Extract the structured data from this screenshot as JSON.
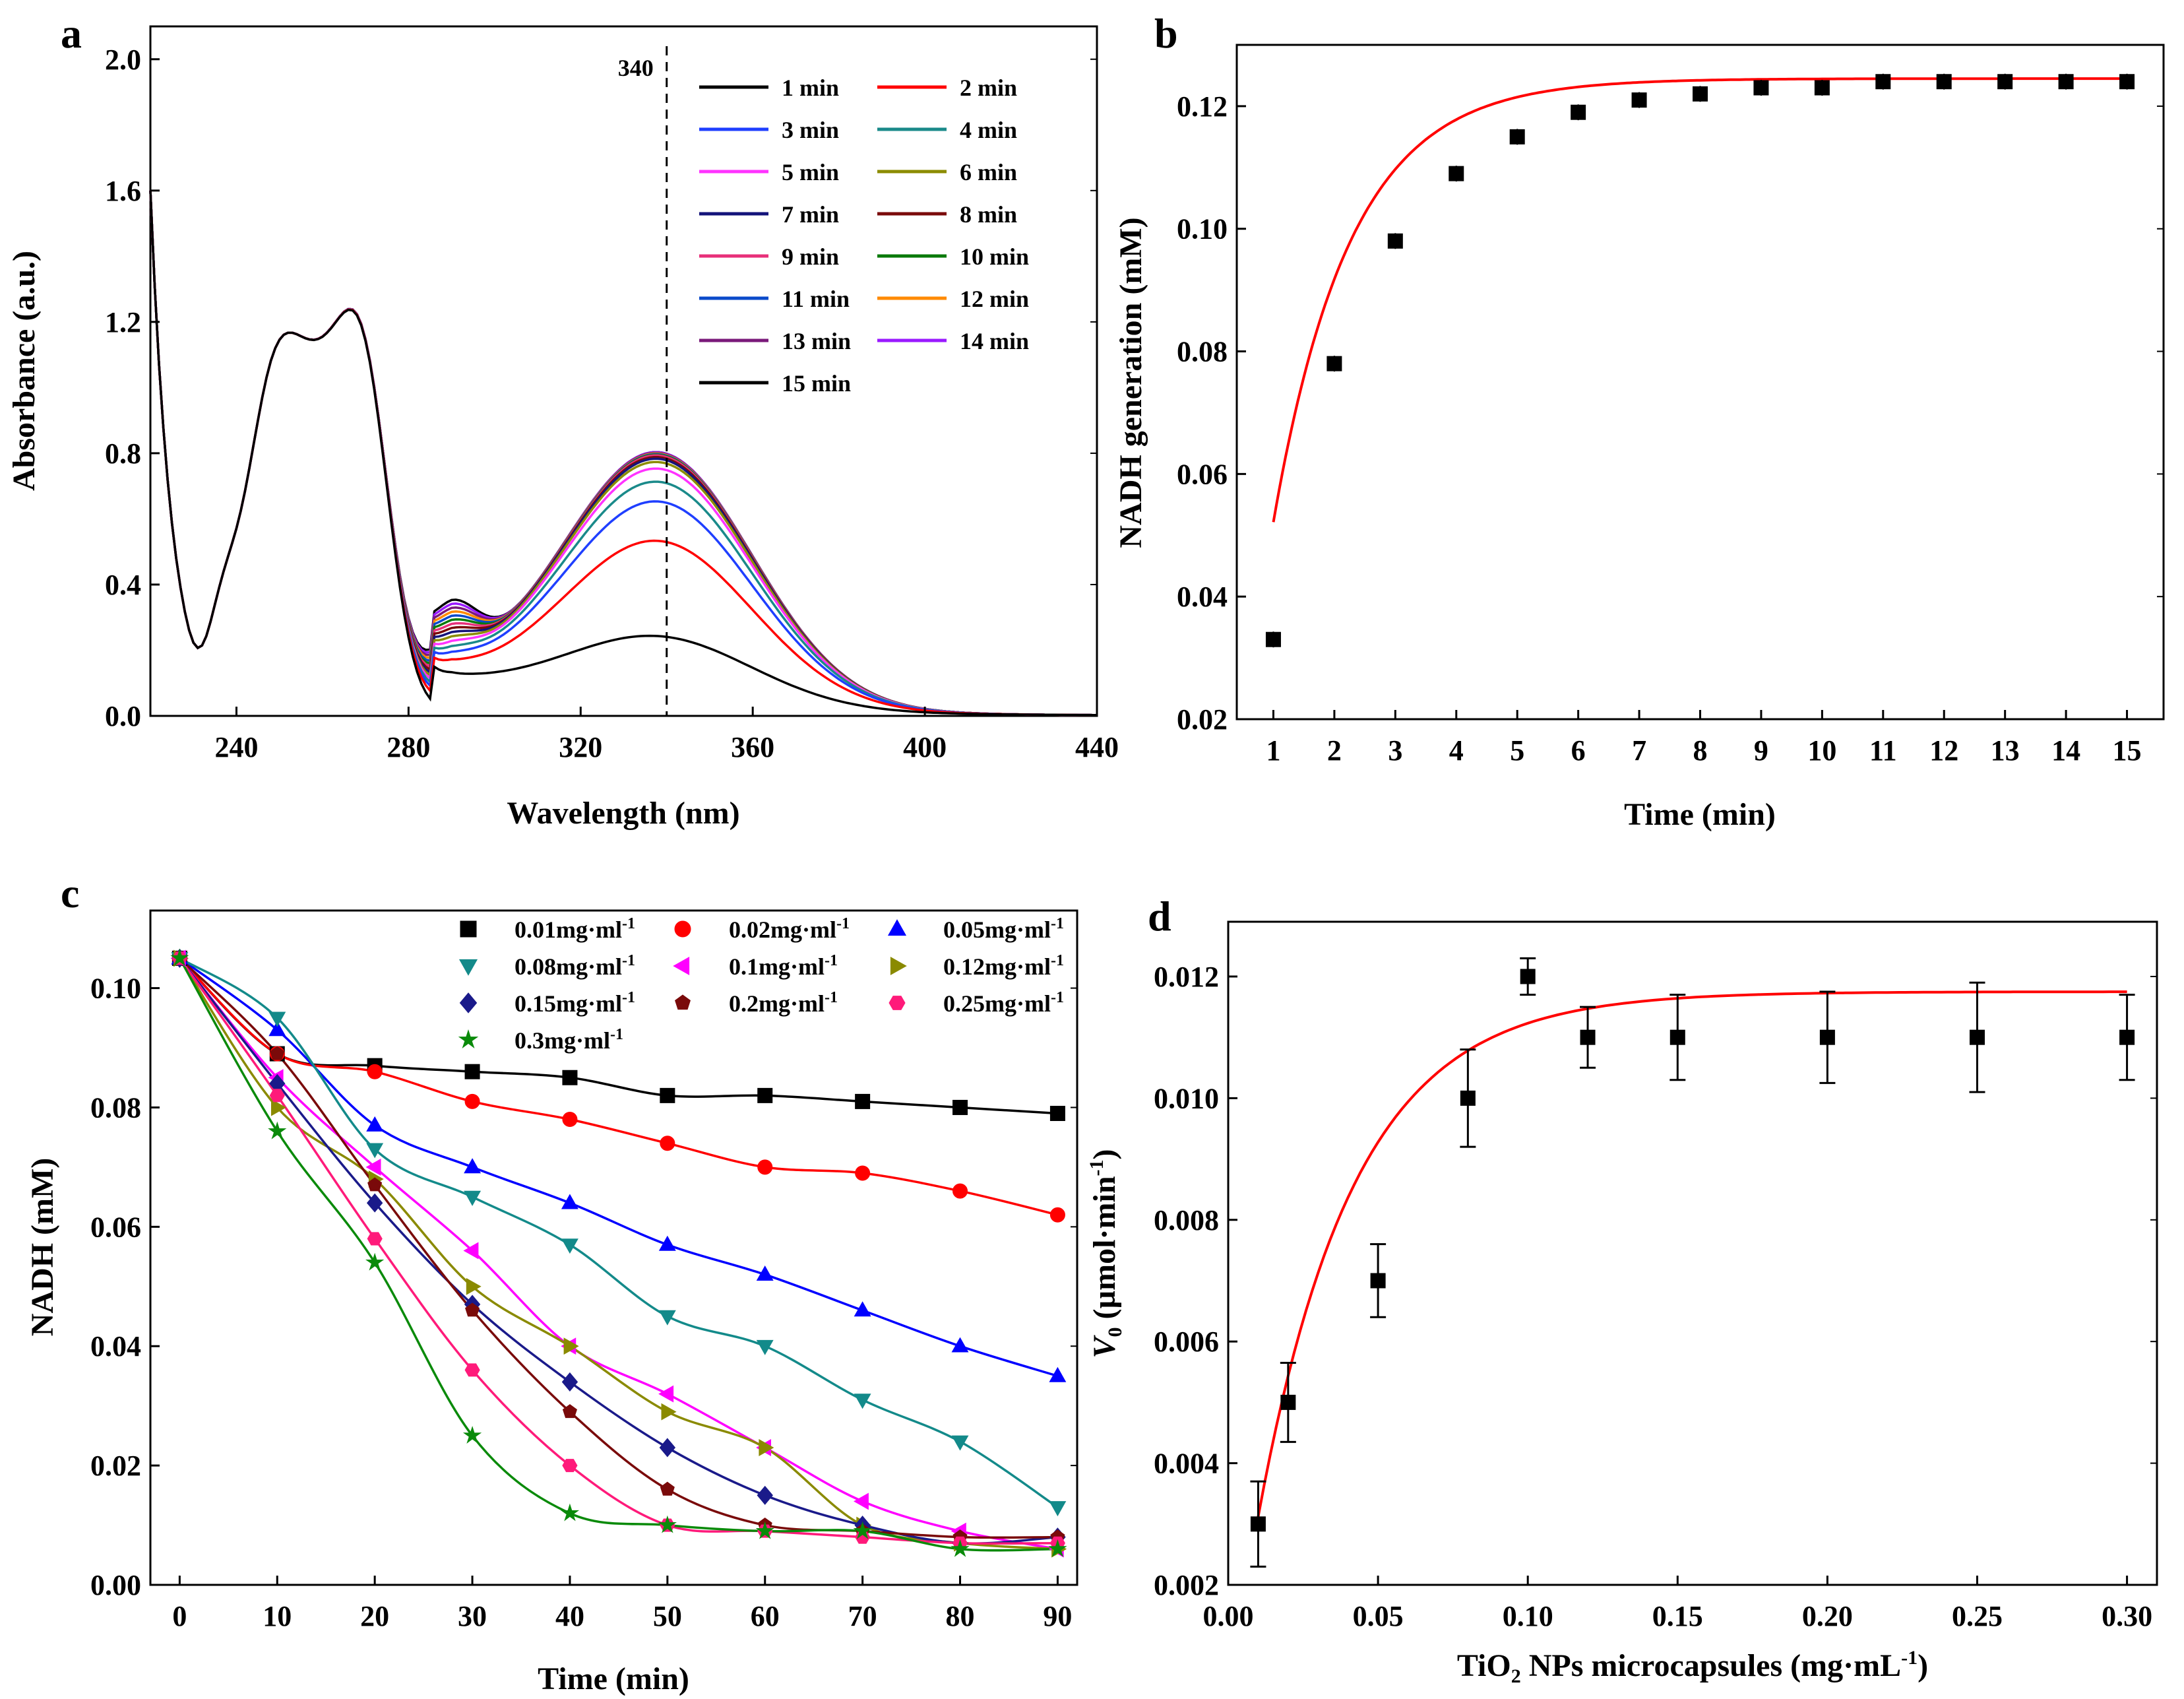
{
  "chart_data": [
    {
      "panel": "a",
      "type": "line",
      "title": "",
      "xlabel": "Wavelength (nm)",
      "ylabel": "Absorbance (a.u.)",
      "xlim": [
        220,
        440
      ],
      "ylim": [
        0.0,
        2.1
      ],
      "xticks": [
        240,
        280,
        320,
        360,
        400,
        440
      ],
      "xtick_labels": [
        "240",
        "280",
        "320",
        "360",
        "400",
        "440"
      ],
      "yticks": [
        0.0,
        0.4,
        0.8,
        1.2,
        1.6,
        2.0
      ],
      "ytick_labels": [
        "0.0",
        "0.4",
        "0.8",
        "1.2",
        "1.6",
        "2.0"
      ],
      "annotation": {
        "x": 340,
        "label": "340",
        "style": "dashed-vertical-line"
      },
      "legend": "top-right",
      "peak340_values": [
        0.21,
        0.5,
        0.62,
        0.68,
        0.72,
        0.74,
        0.75,
        0.755,
        0.76,
        0.762,
        0.764,
        0.766,
        0.768,
        0.77,
        0.77
      ],
      "series": [
        {
          "name": "1 min",
          "color": "#000000"
        },
        {
          "name": "2 min",
          "color": "#ff0000"
        },
        {
          "name": "3 min",
          "color": "#1f3fff"
        },
        {
          "name": "4 min",
          "color": "#1a8a8a"
        },
        {
          "name": "5 min",
          "color": "#ff33ff"
        },
        {
          "name": "6 min",
          "color": "#8c8c00"
        },
        {
          "name": "7 min",
          "color": "#14147a"
        },
        {
          "name": "8 min",
          "color": "#7a0a0a"
        },
        {
          "name": "9 min",
          "color": "#e8307a"
        },
        {
          "name": "10 min",
          "color": "#0a7a0a"
        },
        {
          "name": "11 min",
          "color": "#0a4aca"
        },
        {
          "name": "12 min",
          "color": "#ff8a00"
        },
        {
          "name": "13 min",
          "color": "#7a1a7a"
        },
        {
          "name": "14 min",
          "color": "#9a1aff"
        },
        {
          "name": "15 min",
          "color": "#000000"
        }
      ]
    },
    {
      "panel": "b",
      "type": "scatter",
      "title": "",
      "xlabel": "Time (min)",
      "ylabel": "NADH generation (mM)",
      "xlim": [
        0.4,
        15.6
      ],
      "ylim": [
        0.02,
        0.13
      ],
      "xticks": [
        1,
        2,
        3,
        4,
        5,
        6,
        7,
        8,
        9,
        10,
        11,
        12,
        13,
        14,
        15
      ],
      "xtick_labels": [
        "1",
        "2",
        "3",
        "4",
        "5",
        "6",
        "7",
        "8",
        "9",
        "10",
        "11",
        "12",
        "13",
        "14",
        "15"
      ],
      "yticks": [
        0.02,
        0.04,
        0.06,
        0.08,
        0.1,
        0.12
      ],
      "ytick_labels": [
        "0.02",
        "0.04",
        "0.06",
        "0.08",
        "0.10",
        "0.12"
      ],
      "x": [
        1,
        2,
        3,
        4,
        5,
        6,
        7,
        8,
        9,
        10,
        11,
        12,
        13,
        14,
        15
      ],
      "y": [
        0.033,
        0.078,
        0.098,
        0.109,
        0.115,
        0.119,
        0.121,
        0.122,
        0.123,
        0.123,
        0.124,
        0.124,
        0.124,
        0.124,
        0.124
      ],
      "fit": {
        "type": "exponential",
        "color": "#ff0000"
      },
      "marker_color": "#000000"
    },
    {
      "panel": "c",
      "type": "scatter",
      "title": "",
      "xlabel": "Time (min)",
      "ylabel": "NADH (mM)",
      "xlim": [
        -3,
        92
      ],
      "ylim": [
        0.0,
        0.113
      ],
      "xticks": [
        0,
        10,
        20,
        30,
        40,
        50,
        60,
        70,
        80,
        90
      ],
      "xtick_labels": [
        "0",
        "10",
        "20",
        "30",
        "40",
        "50",
        "60",
        "70",
        "80",
        "90"
      ],
      "yticks": [
        0.0,
        0.02,
        0.04,
        0.06,
        0.08,
        0.1
      ],
      "ytick_labels": [
        "0.00",
        "0.02",
        "0.04",
        "0.06",
        "0.08",
        "0.10"
      ],
      "legend": "top-right",
      "x": [
        0,
        10,
        20,
        30,
        40,
        50,
        60,
        70,
        80,
        90
      ],
      "series": [
        {
          "name": "0.01mg·ml",
          "sup": "-1",
          "color": "#000000",
          "marker": "square",
          "values": [
            0.105,
            0.089,
            0.087,
            0.086,
            0.085,
            0.082,
            0.082,
            0.081,
            0.08,
            0.079
          ]
        },
        {
          "name": "0.02mg·ml",
          "sup": "-1",
          "color": "#ff0000",
          "marker": "circle",
          "values": [
            0.105,
            0.089,
            0.086,
            0.081,
            0.078,
            0.074,
            0.07,
            0.069,
            0.066,
            0.062
          ]
        },
        {
          "name": "0.05mg·ml",
          "sup": "-1",
          "color": "#0000ff",
          "marker": "triangle-up",
          "values": [
            0.105,
            0.093,
            0.077,
            0.07,
            0.064,
            0.057,
            0.052,
            0.046,
            0.04,
            0.035
          ]
        },
        {
          "name": "0.08mg·ml",
          "sup": "-1",
          "color": "#138a8a",
          "marker": "triangle-down",
          "values": [
            0.105,
            0.095,
            0.073,
            0.065,
            0.057,
            0.045,
            0.04,
            0.031,
            0.024,
            0.013
          ]
        },
        {
          "name": "0.1mg·ml",
          "sup": "-1",
          "color": "#ff00ff",
          "marker": "triangle-left",
          "values": [
            0.105,
            0.085,
            0.07,
            0.056,
            0.04,
            0.032,
            0.023,
            0.014,
            0.009,
            0.006
          ]
        },
        {
          "name": "0.12mg·ml",
          "sup": "-1",
          "color": "#8a8a00",
          "marker": "triangle-right",
          "values": [
            0.105,
            0.08,
            0.068,
            0.05,
            0.04,
            0.029,
            0.023,
            0.01,
            0.007,
            0.006
          ]
        },
        {
          "name": "0.15mg·ml",
          "sup": "-1",
          "color": "#1a1a8a",
          "marker": "diamond",
          "values": [
            0.105,
            0.084,
            0.064,
            0.047,
            0.034,
            0.023,
            0.015,
            0.01,
            0.007,
            0.008
          ]
        },
        {
          "name": "0.2mg·ml",
          "sup": "-1",
          "color": "#7a0a0a",
          "marker": "pentagon",
          "values": [
            0.105,
            0.089,
            0.067,
            0.046,
            0.029,
            0.016,
            0.01,
            0.009,
            0.008,
            0.008
          ]
        },
        {
          "name": "0.25mg·ml",
          "sup": "-1",
          "color": "#ff1a7a",
          "marker": "hexagon",
          "values": [
            0.105,
            0.082,
            0.058,
            0.036,
            0.02,
            0.01,
            0.009,
            0.008,
            0.007,
            0.007
          ]
        },
        {
          "name": "0.3mg·ml",
          "sup": "-1",
          "color": "#0a8a0a",
          "marker": "star",
          "values": [
            0.105,
            0.076,
            0.054,
            0.025,
            0.012,
            0.01,
            0.009,
            0.009,
            0.006,
            0.006
          ]
        }
      ]
    },
    {
      "panel": "d",
      "type": "scatter",
      "title": "",
      "xlabel_main": "TiO",
      "xlabel_sub": "2",
      "xlabel_rest": " NPs microcapsules (mg·mL",
      "xlabel_sup": "-1",
      "xlabel_end": ")",
      "ylabel_var": "V",
      "ylabel_sub": "0",
      "ylabel_rest": " (µmol·min",
      "ylabel_sup": "-1",
      "ylabel_end": ")",
      "xlim": [
        0.0,
        0.31
      ],
      "ylim": [
        0.002,
        0.0129
      ],
      "xticks": [
        0.0,
        0.05,
        0.1,
        0.15,
        0.2,
        0.25,
        0.3
      ],
      "xtick_labels": [
        "0.00",
        "0.05",
        "0.10",
        "0.15",
        "0.20",
        "0.25",
        "0.30"
      ],
      "yticks": [
        0.002,
        0.004,
        0.006,
        0.008,
        0.01,
        0.012
      ],
      "ytick_labels": [
        "0.002",
        "0.004",
        "0.006",
        "0.008",
        "0.010",
        "0.012"
      ],
      "x": [
        0.01,
        0.02,
        0.05,
        0.08,
        0.1,
        0.12,
        0.15,
        0.2,
        0.25,
        0.3
      ],
      "y": [
        0.003,
        0.005,
        0.007,
        0.01,
        0.012,
        0.011,
        0.011,
        0.011,
        0.011,
        0.011
      ],
      "err": [
        0.0007,
        0.00065,
        0.0006,
        0.0008,
        0.0003,
        0.0005,
        0.0007,
        0.00075,
        0.0009,
        0.0007
      ],
      "fit": {
        "type": "exponential",
        "color": "#ff0000"
      },
      "marker_color": "#000000"
    }
  ]
}
